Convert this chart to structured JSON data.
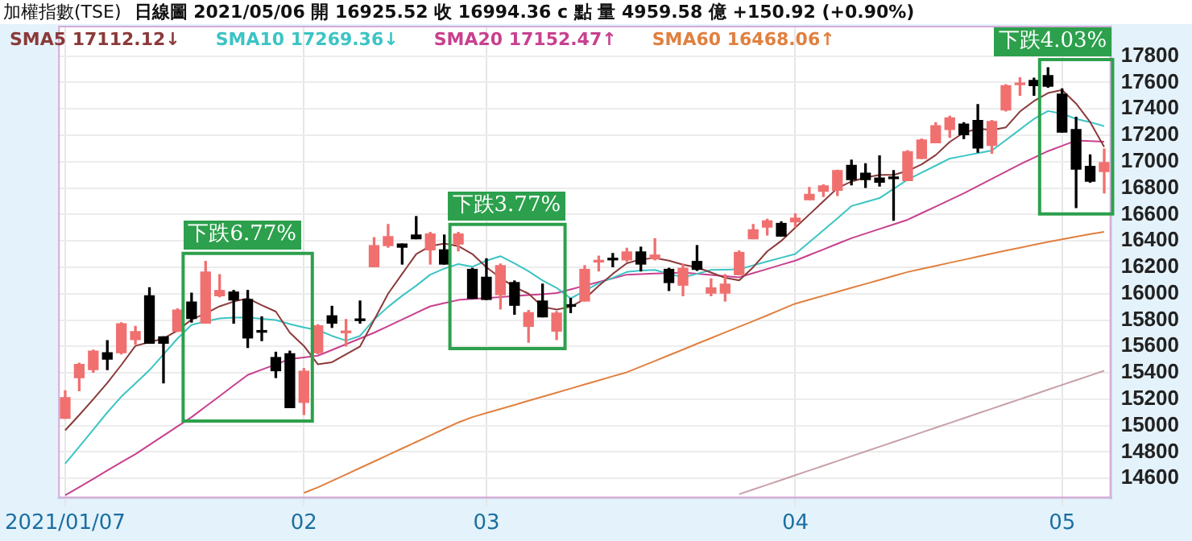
{
  "chart_data": {
    "type": "candlestick",
    "title": "加權指數(TSE)",
    "subtitle": "日線圖 2021/05/06 開 16925.52 收 16994.36 c 點 量 4959.58 億 +150.92 (+0.90%)",
    "categories": [
      "2021/01/07",
      null,
      null,
      null,
      null,
      null,
      null,
      null,
      null,
      null,
      null,
      null,
      null,
      null,
      null,
      null,
      null,
      "02",
      null,
      null,
      null,
      null,
      null,
      null,
      null,
      null,
      null,
      null,
      null,
      null,
      "03",
      null,
      null,
      null,
      null,
      null,
      null,
      null,
      null,
      null,
      null,
      null,
      null,
      null,
      null,
      null,
      null,
      null,
      null,
      null,
      null,
      null,
      "04",
      null,
      null,
      null,
      null,
      null,
      null,
      null,
      null,
      null,
      null,
      null,
      null,
      null,
      null,
      null,
      null,
      null,
      null,
      "05",
      null,
      null,
      null
    ],
    "ohlc": [
      [
        15056,
        15264,
        15056,
        15212
      ],
      [
        15364,
        15472,
        15264,
        15464
      ],
      [
        15424,
        15572,
        15404,
        15564
      ],
      [
        15552,
        15644,
        15424,
        15504
      ],
      [
        15552,
        15780,
        15544,
        15772
      ],
      [
        15652,
        15752,
        15616,
        15712
      ],
      [
        15984,
        16044,
        15624,
        15624
      ],
      [
        15672,
        15672,
        15324,
        15624
      ],
      [
        15716,
        15884,
        15712,
        15876
      ],
      [
        15936,
        16004,
        15784,
        15812
      ],
      [
        15776,
        16244,
        15776,
        16164
      ],
      [
        15984,
        16144,
        15976,
        16024
      ],
      [
        16012,
        16024,
        15776,
        15952
      ],
      [
        15956,
        16024,
        15592,
        15664
      ],
      [
        15716,
        15824,
        15644,
        15708
      ],
      [
        15516,
        15556,
        15364,
        15416
      ],
      [
        15544,
        15564,
        15136,
        15136
      ],
      [
        15176,
        15432,
        15084,
        15412
      ],
      [
        15552,
        15764,
        15544,
        15756
      ],
      [
        15832,
        15904,
        15744,
        15776
      ],
      [
        15704,
        15804,
        15604,
        15716
      ],
      [
        15804,
        15944,
        15776,
        15796
      ],
      [
        16204,
        16424,
        16204,
        16364
      ],
      [
        16364,
        16524,
        16352,
        16432
      ],
      [
        16376,
        16376,
        16224,
        16352
      ],
      [
        16444,
        16584,
        16416,
        16416
      ],
      [
        16332,
        16464,
        16224,
        16452
      ],
      [
        16332,
        16444,
        16224,
        16224
      ],
      [
        16376,
        16464,
        16324,
        16452
      ],
      [
        16184,
        16192,
        15964,
        15964
      ],
      [
        16124,
        16264,
        15956,
        15956
      ],
      [
        15992,
        16224,
        15884,
        16212
      ],
      [
        16084,
        16096,
        15844,
        15912
      ],
      [
        15752,
        15872,
        15632,
        15856
      ],
      [
        15944,
        16072,
        15824,
        15824
      ],
      [
        15716,
        15864,
        15652,
        15852
      ],
      [
        15912,
        15964,
        15856,
        15904
      ],
      [
        15944,
        16212,
        15944,
        16184
      ],
      [
        16240,
        16284,
        16172,
        16252
      ],
      [
        16264,
        16304,
        16204,
        16256
      ],
      [
        16256,
        16344,
        16244,
        16316
      ],
      [
        16316,
        16352,
        16172,
        16224
      ],
      [
        16264,
        16416,
        16256,
        16292
      ],
      [
        16184,
        16192,
        16024,
        16084
      ],
      [
        16064,
        16224,
        15984,
        16192
      ],
      [
        16244,
        16364,
        16176,
        16184
      ],
      [
        16004,
        16112,
        15984,
        16044
      ],
      [
        16004,
        16144,
        15944,
        16072
      ],
      [
        16144,
        16324,
        16144,
        16312
      ],
      [
        16416,
        16524,
        16416,
        16484
      ],
      [
        16504,
        16564,
        16444,
        16552
      ],
      [
        16532,
        16544,
        16436,
        16436
      ],
      [
        16544,
        16604,
        16504,
        16572
      ],
      [
        16712,
        16804,
        16712,
        16752
      ],
      [
        16776,
        16824,
        16736,
        16816
      ],
      [
        16784,
        16936,
        16744,
        16932
      ],
      [
        16972,
        17012,
        16824,
        16864
      ],
      [
        16912,
        16984,
        16804,
        16864
      ],
      [
        16876,
        17044,
        16816,
        16844
      ],
      [
        16884,
        16932,
        16556,
        16872
      ],
      [
        16856,
        17084,
        16856,
        17076
      ],
      [
        17024,
        17172,
        17024,
        17164
      ],
      [
        17144,
        17296,
        17144,
        17272
      ],
      [
        17244,
        17344,
        17184,
        17332
      ],
      [
        17284,
        17296,
        17176,
        17204
      ],
      [
        17312,
        17432,
        17072,
        17104
      ],
      [
        17124,
        17312,
        17064,
        17304
      ],
      [
        17392,
        17584,
        17384,
        17576
      ],
      [
        17584,
        17636,
        17504,
        17592
      ],
      [
        17616,
        17632,
        17504,
        17576
      ],
      [
        17652,
        17712,
        17564,
        17572
      ],
      [
        17512,
        17552,
        17224,
        17224
      ],
      [
        17244,
        17336,
        16652,
        16944
      ],
      [
        16964,
        17052,
        16844,
        16852
      ],
      [
        16925,
        17096,
        16764,
        16994
      ]
    ],
    "colors": [
      "#f07070",
      "#f07070",
      "#f07070",
      "#000000",
      "#f07070",
      "#f07070",
      "#000000",
      "#000000",
      "#f07070",
      "#000000",
      "#f07070",
      "#f07070",
      "#000000",
      "#000000",
      "#000000",
      "#000000",
      "#000000",
      "#f07070",
      "#f07070",
      "#000000",
      "#f07070",
      "#000000",
      "#f07070",
      "#f07070",
      "#000000",
      "#000000",
      "#f07070",
      "#000000",
      "#f07070",
      "#000000",
      "#000000",
      "#f07070",
      "#000000",
      "#f07070",
      "#000000",
      "#f07070",
      "#000000",
      "#f07070",
      "#f07070",
      "#000000",
      "#f07070",
      "#000000",
      "#f07070",
      "#000000",
      "#f07070",
      "#000000",
      "#f07070",
      "#f07070",
      "#f07070",
      "#f07070",
      "#f07070",
      "#000000",
      "#f07070",
      "#f07070",
      "#f07070",
      "#f07070",
      "#000000",
      "#000000",
      "#000000",
      "#000000",
      "#f07070",
      "#f07070",
      "#f07070",
      "#f07070",
      "#000000",
      "#000000",
      "#f07070",
      "#f07070",
      "#f07070",
      "#000000",
      "#000000",
      "#000000",
      "#000000",
      "#000000",
      "#f07070"
    ],
    "series": [
      {
        "name": "SMA5 17112.12↓",
        "type": "line",
        "color": "#8b3a3a",
        "values": [
          14964,
          15080,
          15200,
          15324,
          15460,
          15604,
          15632,
          15660,
          15720,
          15804,
          15850,
          15904,
          15940,
          15964,
          15912,
          15864,
          15704,
          15604,
          15464,
          15480,
          15540,
          15600,
          15800,
          16000,
          16150,
          16300,
          16360,
          16380,
          16360,
          16300,
          16200,
          16120,
          16050,
          16000,
          15900,
          15880,
          15900,
          15960,
          16060,
          16150,
          16230,
          16260,
          16270,
          16250,
          16220,
          16200,
          16160,
          16120,
          16100,
          16200,
          16320,
          16400,
          16500,
          16600,
          16700,
          16800,
          16850,
          16880,
          16900,
          16900,
          16930,
          16980,
          17050,
          17150,
          17220,
          17250,
          17240,
          17260,
          17380,
          17460,
          17520,
          17544,
          17440,
          17300,
          17112
        ]
      },
      {
        "name": "SMA10 17269.36↓",
        "type": "line",
        "color": "#3cc4c4",
        "values": [
          14712,
          14840,
          14970,
          15100,
          15220,
          15320,
          15420,
          15540,
          15660,
          15764,
          15790,
          15812,
          15818,
          15820,
          15810,
          15800,
          15770,
          15744,
          15724,
          15680,
          15644,
          15680,
          15804,
          15900,
          15984,
          16060,
          16144,
          16190,
          16224,
          16204,
          16250,
          16284,
          16230,
          16170,
          16100,
          16044,
          15964,
          16020,
          16080,
          16120,
          16164,
          16175,
          16180,
          16150,
          16124,
          16150,
          16180,
          16182,
          16184,
          16214,
          16244,
          16272,
          16300,
          16390,
          16480,
          16570,
          16664,
          16694,
          16724,
          16794,
          16864,
          16917,
          16970,
          17024,
          17044,
          17064,
          17084,
          17164,
          17244,
          17324,
          17384,
          17364,
          17324,
          17300,
          17269
        ]
      },
      {
        "name": "SMA20 17152.47↑",
        "type": "line",
        "color": "#c8408f",
        "values": [
          14472,
          14534,
          14596,
          14660,
          14722,
          14784,
          14854,
          14924,
          14994,
          15064,
          15144,
          15224,
          15304,
          15384,
          15424,
          15464,
          15504,
          15517,
          15530,
          15573,
          15617,
          15660,
          15704,
          15754,
          15804,
          15854,
          15904,
          15928,
          15952,
          15960,
          15967,
          15974,
          15981,
          15989,
          15996,
          16004,
          16032,
          16060,
          16088,
          16116,
          16144,
          16148,
          16152,
          16156,
          16160,
          16151,
          16142,
          16133,
          16124,
          16156,
          16187,
          16219,
          16250,
          16293,
          16335,
          16378,
          16420,
          16455,
          16490,
          16525,
          16560,
          16610,
          16660,
          16710,
          16760,
          16815,
          16870,
          16925,
          16980,
          17030,
          17080,
          17120,
          17160,
          17156,
          17152
        ]
      },
      {
        "name": "SMA60 16468.06↑",
        "type": "line",
        "color": "#e08040",
        "values": [
          null,
          null,
          null,
          null,
          null,
          null,
          null,
          null,
          null,
          null,
          null,
          null,
          null,
          null,
          null,
          null,
          null,
          14490,
          14532,
          14581,
          14630,
          14679,
          14728,
          14778,
          14827,
          14876,
          14925,
          14975,
          15024,
          15064,
          15095,
          15126,
          15157,
          15188,
          15219,
          15250,
          15281,
          15312,
          15343,
          15374,
          15404,
          15447,
          15490,
          15533,
          15576,
          15620,
          15663,
          15706,
          15749,
          15792,
          15835,
          15880,
          15924,
          15954,
          15984,
          16014,
          16044,
          16074,
          16104,
          16134,
          16164,
          16187,
          16210,
          16234,
          16257,
          16280,
          16304,
          16326,
          16348,
          16370,
          16392,
          16412,
          16432,
          16452,
          16468
        ]
      },
      {
        "type": "line",
        "color": "#c8a0a8",
        "values": [
          null,
          null,
          null,
          null,
          null,
          null,
          null,
          null,
          null,
          null,
          null,
          null,
          null,
          null,
          null,
          null,
          null,
          null,
          null,
          null,
          null,
          null,
          null,
          null,
          null,
          null,
          null,
          null,
          null,
          null,
          null,
          null,
          null,
          null,
          null,
          null,
          null,
          null,
          null,
          null,
          null,
          null,
          null,
          null,
          null,
          null,
          null,
          null,
          14480,
          14516,
          14552,
          14588,
          14624,
          14660,
          14696,
          14732,
          14768,
          14804,
          14840,
          14876,
          14912,
          14948,
          14984,
          15020,
          15056,
          15092,
          15128,
          15164,
          15200,
          15236,
          15272,
          15308,
          15344,
          15380,
          15416
        ]
      }
    ],
    "ylim": [
      14450,
      18030
    ],
    "yticks": [
      14600,
      14800,
      15000,
      15200,
      15400,
      15600,
      15800,
      16000,
      16200,
      16400,
      16600,
      16800,
      17000,
      17200,
      17400,
      17600,
      17800
    ],
    "grid": true,
    "legend": "top left",
    "annotations": [
      "下跌6.77%",
      "下跌3.77%",
      "下跌4.03%"
    ]
  }
}
